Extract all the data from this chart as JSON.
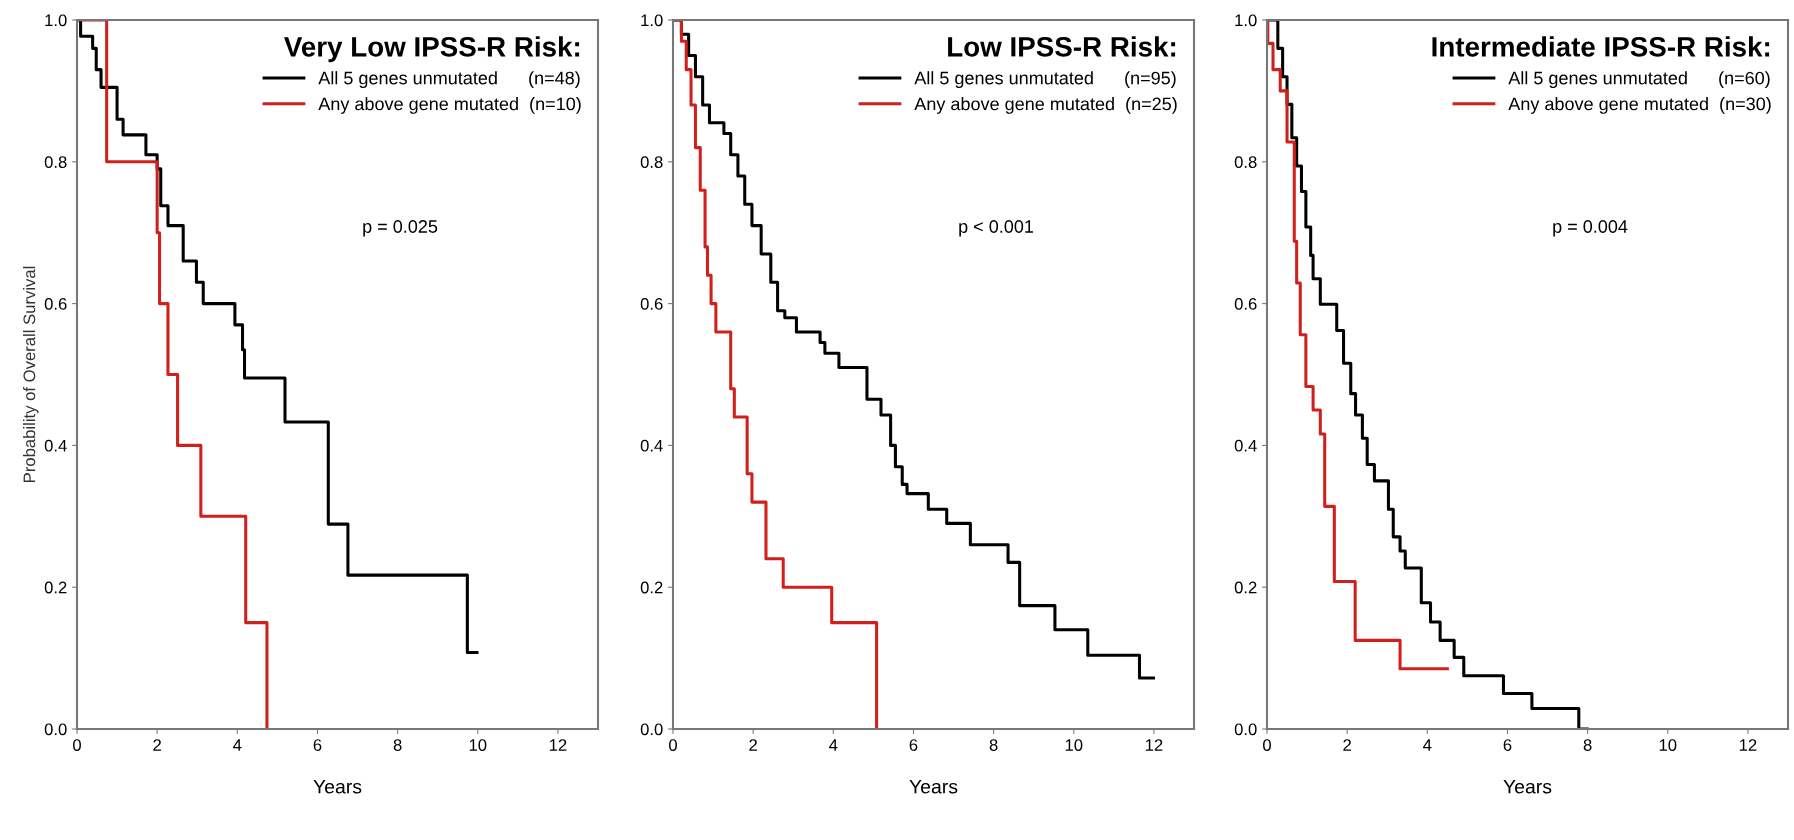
{
  "chart_data": [
    {
      "type": "step",
      "ylabel": "Probability of Overall Survival",
      "xlabel": "Years",
      "legend_title": "Very Low IPSS-R Risk:",
      "legend": "top right",
      "annotations": [
        "p = 0.025"
      ],
      "xlim": [
        0,
        13
      ],
      "ylim": [
        0,
        1
      ],
      "xticks": [
        0,
        2,
        4,
        6,
        8,
        10,
        12
      ],
      "yticks": [
        {
          "value": 0,
          "label": "0.0"
        },
        {
          "value": 0.2,
          "label": "0.2"
        },
        {
          "value": 0.4,
          "label": "0.4"
        },
        {
          "value": 0.6,
          "label": "0.6"
        },
        {
          "value": 0.8,
          "label": "0.8"
        },
        {
          "value": 1,
          "label": "1.0"
        }
      ],
      "grid": false,
      "series": [
        {
          "name": "All 5 genes unmutated      (n=48)",
          "color": "#000000",
          "x": [
            0,
            0.09,
            0.39,
            0.48,
            0.6,
            1.0,
            1.15,
            1.72,
            2.0,
            2.09,
            2.27,
            2.65,
            2.98,
            3.15,
            3.94,
            4.13,
            4.18,
            5.19,
            6.27,
            6.76,
            9.74,
            9.98
          ],
          "values": [
            1.0,
            0.977,
            0.96,
            0.93,
            0.905,
            0.86,
            0.838,
            0.81,
            0.79,
            0.738,
            0.71,
            0.66,
            0.63,
            0.6,
            0.57,
            0.535,
            0.495,
            0.433,
            0.289,
            0.217,
            0.108,
            0.108
          ]
        },
        {
          "name": "Any above gene mutated  (n=10)",
          "color": "#d0201c",
          "x": [
            0,
            0.74,
            2.0,
            2.06,
            2.27,
            2.51,
            3.09,
            4.21,
            4.74
          ],
          "values": [
            1.0,
            0.8,
            0.7,
            0.6,
            0.5,
            0.4,
            0.3,
            0.15,
            0.0
          ]
        }
      ]
    },
    {
      "type": "step",
      "xlabel": "Years",
      "legend_title": "Low IPSS-R Risk:",
      "legend": "top right",
      "annotations": [
        "p < 0.001"
      ],
      "xlim": [
        0,
        13
      ],
      "ylim": [
        0,
        1
      ],
      "xticks": [
        0,
        2,
        4,
        6,
        8,
        10,
        12
      ],
      "yticks": [
        {
          "value": 0,
          "label": "0.0"
        },
        {
          "value": 0.2,
          "label": "0.2"
        },
        {
          "value": 0.4,
          "label": "0.4"
        },
        {
          "value": 0.6,
          "label": "0.6"
        },
        {
          "value": 0.8,
          "label": "0.8"
        },
        {
          "value": 1,
          "label": "1.0"
        }
      ],
      "grid": false,
      "series": [
        {
          "name": "All 5 genes unmutated      (n=95)",
          "color": "#000000",
          "x": [
            0,
            0.21,
            0.39,
            0.56,
            0.74,
            0.91,
            1.27,
            1.44,
            1.62,
            1.79,
            1.97,
            2.2,
            2.44,
            2.61,
            2.79,
            3.08,
            3.67,
            3.79,
            4.14,
            4.84,
            5.19,
            5.43,
            5.55,
            5.72,
            5.84,
            6.37,
            6.83,
            7.42,
            8.36,
            8.65,
            9.53,
            10.35,
            11.64,
            11.99
          ],
          "values": [
            1.0,
            0.98,
            0.95,
            0.92,
            0.88,
            0.855,
            0.84,
            0.81,
            0.78,
            0.74,
            0.71,
            0.67,
            0.63,
            0.59,
            0.58,
            0.56,
            0.545,
            0.53,
            0.51,
            0.465,
            0.443,
            0.4,
            0.37,
            0.345,
            0.332,
            0.31,
            0.29,
            0.26,
            0.235,
            0.174,
            0.14,
            0.104,
            0.072,
            0.072
          ]
        },
        {
          "name": "Any above gene mutated  (n=25)",
          "color": "#d0201c",
          "x": [
            0,
            0.21,
            0.33,
            0.45,
            0.56,
            0.68,
            0.8,
            0.86,
            0.95,
            1.07,
            1.44,
            1.53,
            1.85,
            1.97,
            2.32,
            2.75,
            3.96,
            5.08
          ],
          "values": [
            1.0,
            0.97,
            0.93,
            0.88,
            0.82,
            0.76,
            0.68,
            0.64,
            0.6,
            0.56,
            0.48,
            0.44,
            0.36,
            0.32,
            0.24,
            0.2,
            0.15,
            0.0
          ]
        }
      ]
    },
    {
      "type": "step",
      "xlabel": "Years",
      "legend_title": "Intermediate IPSS-R Risk:",
      "legend": "top right",
      "annotations": [
        "p = 0.004"
      ],
      "xlim": [
        0,
        13
      ],
      "ylim": [
        0,
        1
      ],
      "xticks": [
        0,
        2,
        4,
        6,
        8,
        10,
        12
      ],
      "yticks": [
        {
          "value": 0,
          "label": "0.0"
        },
        {
          "value": 0.2,
          "label": "0.2"
        },
        {
          "value": 0.4,
          "label": "0.4"
        },
        {
          "value": 0.6,
          "label": "0.6"
        },
        {
          "value": 0.8,
          "label": "0.8"
        },
        {
          "value": 1,
          "label": "1.0"
        }
      ],
      "grid": false,
      "series": [
        {
          "name": "All 5 genes unmutated      (n=60)",
          "color": "#000000",
          "x": [
            0,
            0.27,
            0.39,
            0.5,
            0.62,
            0.74,
            0.86,
            0.97,
            1.09,
            1.15,
            1.33,
            1.74,
            1.91,
            2.09,
            2.21,
            2.38,
            2.5,
            2.68,
            3.03,
            3.15,
            3.32,
            3.45,
            3.85,
            4.08,
            4.32,
            4.67,
            4.91,
            5.9,
            6.61,
            7.78,
            7.99
          ],
          "values": [
            1.0,
            0.96,
            0.92,
            0.881,
            0.834,
            0.794,
            0.758,
            0.708,
            0.668,
            0.635,
            0.599,
            0.562,
            0.516,
            0.473,
            0.443,
            0.41,
            0.373,
            0.35,
            0.31,
            0.271,
            0.251,
            0.227,
            0.178,
            0.151,
            0.125,
            0.101,
            0.075,
            0.05,
            0.029,
            0.0,
            0.0
          ]
        },
        {
          "name": "Any above gene mutated  (n=30)",
          "color": "#d0201c",
          "x": [
            0,
            0.02,
            0.15,
            0.33,
            0.5,
            0.68,
            0.74,
            0.83,
            0.97,
            1.15,
            1.33,
            1.44,
            1.68,
            2.2,
            3.32,
            4.5
          ],
          "values": [
            1.0,
            0.967,
            0.93,
            0.9,
            0.828,
            0.688,
            0.629,
            0.556,
            0.483,
            0.45,
            0.416,
            0.314,
            0.208,
            0.125,
            0.085,
            0.085
          ]
        }
      ]
    }
  ]
}
